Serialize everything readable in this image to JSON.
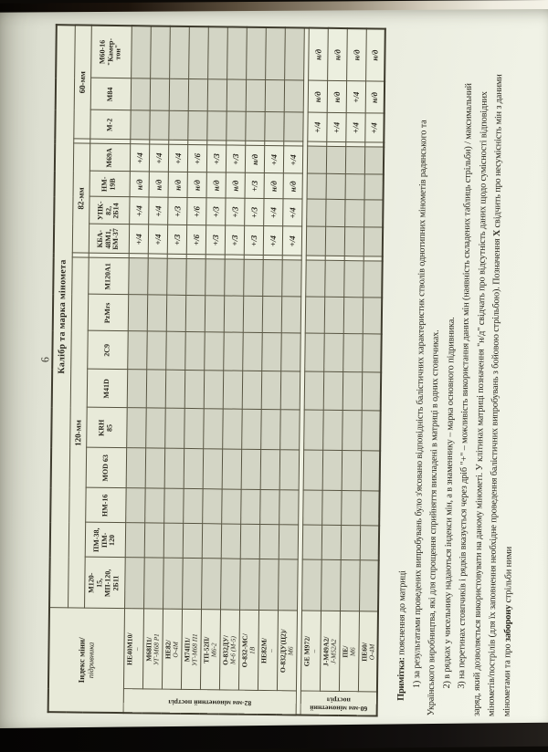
{
  "page": {
    "number": "6"
  },
  "table": {
    "corner": {
      "num": "Індекс міни/",
      "den": "підривника"
    },
    "main_header": "Калібр та марка міномета",
    "caliber_groups": [
      {
        "label": "120-мм",
        "models": [
          "М120-\n15,\nМП-120,\n2Б11",
          "ПМ-38,\nПМ-\n120",
          "НМ-16",
          "MOD 63",
          "KRH\n85",
          "M41D",
          "2С9",
          "PzMrs",
          "М120А1"
        ]
      },
      {
        "label": "82-мм",
        "models": [
          "КБА-\n48М1,\nБМ-37",
          "УПК-\n82,\n2Б14",
          "НМ-\n19В",
          "М69А"
        ]
      },
      {
        "label": "60-мм",
        "models": [
          "М-2",
          "М84",
          "М60-16\n\"Камер-\nтон\""
        ]
      }
    ],
    "row_groups": [
      {
        "label": "82-мм мінометний постріл",
        "rows": [
          {
            "index": "НЕ40М10/",
            "fuze": "–",
            "values": [
              "",
              "",
              "",
              "",
              "",
              "",
              "",
              "",
              "",
              "+/4",
              "+/4",
              "н/д",
              "+/4",
              "",
              "",
              ""
            ]
          },
          {
            "index": "М68П1/",
            "fuze": "УГ-М68 Р1",
            "values": [
              "",
              "",
              "",
              "",
              "",
              "",
              "",
              "",
              "",
              "+/4",
              "+/4",
              "н/д",
              "+/4",
              "",
              "",
              ""
            ]
          },
          {
            "index": "НЕ82/",
            "fuze": "О-4М",
            "values": [
              "",
              "",
              "",
              "",
              "",
              "",
              "",
              "",
              "",
              "+/3",
              "+/3",
              "н/д",
              "+/4",
              "",
              "",
              ""
            ]
          },
          {
            "index": "М74П1/",
            "fuze": "УГ-М68 П1",
            "values": [
              "",
              "",
              "",
              "",
              "",
              "",
              "",
              "",
              "",
              "+/6",
              "+/6",
              "н/д",
              "+/6",
              "",
              "",
              ""
            ]
          },
          {
            "index": "ТП-52П/",
            "fuze": "М6-2",
            "values": [
              "",
              "",
              "",
              "",
              "",
              "",
              "",
              "",
              "",
              "+/3",
              "+/3",
              "н/д",
              "+/3",
              "",
              "",
              ""
            ]
          },
          {
            "index": "О-832ДУ/",
            "fuze": "М-6 (М-5)",
            "values": [
              "",
              "",
              "",
              "",
              "",
              "",
              "",
              "",
              "",
              "+/3",
              "+/3",
              "н/д",
              "+/3",
              "",
              "",
              ""
            ]
          },
          {
            "index": "О-832-МС/",
            "fuze": "1В",
            "values": [
              "",
              "",
              "",
              "",
              "",
              "",
              "",
              "",
              "",
              "+/3",
              "+/3",
              "+/3",
              "н/д",
              "",
              "",
              ""
            ]
          },
          {
            "index": "НЕ82М/",
            "fuze": "–",
            "values": [
              "",
              "",
              "",
              "",
              "",
              "",
              "",
              "",
              "",
              "+/4",
              "+/4",
              "н/д",
              "+/4",
              "",
              "",
              ""
            ]
          },
          {
            "index": "О-832ДУ(Ц2)/",
            "fuze": "М6",
            "values": [
              "",
              "",
              "",
              "",
              "",
              "",
              "",
              "",
              "",
              "+/4",
              "+/4",
              "н/д",
              "+/4",
              "",
              "",
              ""
            ]
          }
        ]
      },
      {
        "label": "60-мм мінометний\nпостріл",
        "rows": [
          {
            "index": "GE М972/",
            "fuze": "–",
            "values": [
              "",
              "",
              "",
              "",
              "",
              "",
              "",
              "",
              "",
              "",
              "",
              "",
              "",
              "+/4",
              "н/д",
              "н/д"
            ]
          },
          {
            "index": "J-М49А2/",
            "fuze": "J-М52А2",
            "values": [
              "",
              "",
              "",
              "",
              "",
              "",
              "",
              "",
              "",
              "",
              "",
              "",
              "",
              "+/4",
              "н/д",
              "н/д"
            ]
          },
          {
            "index": "ПЕ/",
            "fuze": "М6",
            "values": [
              "",
              "",
              "",
              "",
              "",
              "",
              "",
              "",
              "",
              "",
              "",
              "",
              "",
              "+/4",
              "+/4",
              "н/д"
            ]
          },
          {
            "index": "ПЕ60/",
            "fuze": "О-4М",
            "values": [
              "",
              "",
              "",
              "",
              "",
              "",
              "",
              "",
              "",
              "",
              "",
              "",
              "",
              "+/4",
              "н/д",
              "н/д"
            ]
          }
        ]
      }
    ]
  },
  "notes": {
    "lines": [
      {
        "ind": 1,
        "seg": [
          {
            "b": true,
            "t": "Примітка:"
          },
          {
            "b": false,
            "t": " пояснення до матриці"
          }
        ]
      },
      {
        "ind": 2,
        "seg": [
          {
            "b": false,
            "t": "1) за результатами проведених випробувань було з'ясовано відповідність балістичних характеристик стволів однотипних мінометів радянського та"
          }
        ]
      },
      {
        "ind": 0,
        "seg": [
          {
            "b": false,
            "t": "Українського виробництва, які для спрощення сприйняття викладені в матриці в одних стовпчиках."
          }
        ]
      },
      {
        "ind": 2,
        "seg": [
          {
            "b": false,
            "t": "2) в рядках у чисельнику надаються індекси мін, а в знаменнику – марка основного підривника."
          }
        ]
      },
      {
        "ind": 2,
        "seg": [
          {
            "b": false,
            "t": "3) на перетинах стовпчиків і рядків вказується через дріб \"+\" – можливість використання даних мін (наявність складених таблиць стрільби) / максимальний"
          }
        ]
      },
      {
        "ind": 0,
        "seg": [
          {
            "b": false,
            "t": "заряд, який дозволяється використовувати на даному мінометі. У клітинах матриці позначення \"н/д\" свідчать про відсутність даних щодо сумісності відповідних"
          }
        ]
      },
      {
        "ind": 0,
        "seg": [
          {
            "b": false,
            "t": "мінометів/пострілів (для їх заповнення необхідне проведення балістичних випробувань з бойовою стрільбою). Позначення "
          },
          {
            "b": true,
            "t": "Х"
          },
          {
            "b": false,
            "t": " свідчить про несумісність мін з даними"
          }
        ]
      },
      {
        "ind": 0,
        "seg": [
          {
            "b": false,
            "t": "мінометами та про "
          },
          {
            "b": true,
            "t": "заборону"
          },
          {
            "b": false,
            "t": " стрільби ними"
          }
        ]
      }
    ]
  }
}
